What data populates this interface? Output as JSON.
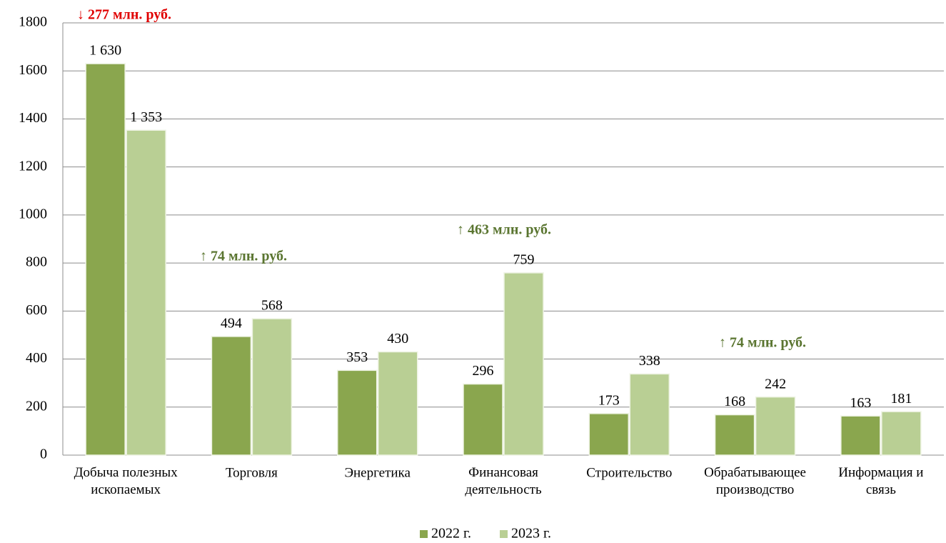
{
  "chart_data": {
    "type": "bar",
    "categories": [
      "Добыча полезных\nископаемых",
      "Торговля",
      "Энергетика",
      "Финансовая\nдеятельность",
      "Строительство",
      "Обрабатывающее\nпроизводство",
      "Информация и\nсвязь"
    ],
    "series": [
      {
        "name": "2022 г.",
        "color": "#8aa64e",
        "values": [
          1630,
          494,
          353,
          296,
          173,
          168,
          163
        ],
        "value_labels": [
          "1 630",
          "494",
          "353",
          "296",
          "173",
          "168",
          "163"
        ]
      },
      {
        "name": "2023 г.",
        "color": "#b9cf94",
        "values": [
          1353,
          568,
          430,
          759,
          338,
          242,
          181
        ],
        "value_labels": [
          "1 353",
          "568",
          "430",
          "759",
          "338",
          "242",
          "181"
        ]
      }
    ],
    "ylim": [
      0,
      1800
    ],
    "yticks": [
      0,
      200,
      400,
      600,
      800,
      1000,
      1200,
      1400,
      1600,
      1800
    ],
    "grid": true,
    "legend": "bottom",
    "annotations": [
      {
        "text": "↓ 277 млн. руб.",
        "color": "#e00000"
      },
      {
        "text": "↑ 74 млн. руб.",
        "color": "#5a7530"
      },
      {
        "text": "↑ 463 млн. руб.",
        "color": "#5a7530"
      },
      {
        "text": "↑ 74 млн. руб.",
        "color": "#5a7530"
      }
    ]
  }
}
